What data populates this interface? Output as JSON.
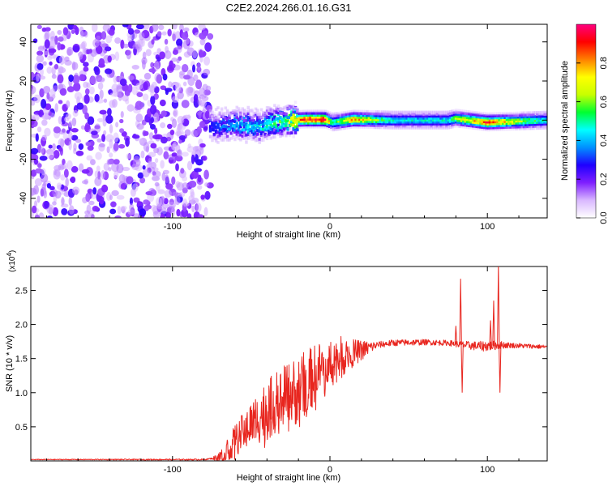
{
  "title": "C2E2.2024.266.01.16.G31",
  "chart_data": [
    {
      "type": "heatmap",
      "xlabel": "Height of straight line (km)",
      "ylabel": "Frequency (Hz)",
      "xlim": [
        -190,
        138
      ],
      "ylim": [
        -50,
        49
      ],
      "xticks": [
        -100,
        0,
        100
      ],
      "yticks": [
        -40,
        -20,
        0,
        20,
        40
      ],
      "colorbar": {
        "label": "Normalized spectral amplitude",
        "range": [
          0,
          1
        ],
        "ticks": [
          "0.0",
          "0.2",
          "0.4",
          "0.6",
          "0.8"
        ],
        "colors": [
          "#ffffff",
          "#d9b8ff",
          "#7f1fff",
          "#1f00ff",
          "#0090ff",
          "#00ffff",
          "#00ff30",
          "#c8ff00",
          "#ffff00",
          "#ff8000",
          "#ff0000",
          "#ff007f"
        ]
      },
      "noise_region_x": [
        -190,
        -76
      ],
      "signal_band": [
        {
          "x": -76,
          "freq_center": -3,
          "amplitude": 0.3
        },
        {
          "x": -60,
          "freq_center": -2,
          "amplitude": 0.4
        },
        {
          "x": -45,
          "freq_center": -3,
          "amplitude": 0.45
        },
        {
          "x": -30,
          "freq_center": 0,
          "amplitude": 0.55
        },
        {
          "x": -15,
          "freq_center": 0.5,
          "amplitude": 0.9
        },
        {
          "x": -3,
          "freq_center": 0.5,
          "amplitude": 0.92
        },
        {
          "x": 2,
          "freq_center": -1,
          "amplitude": 0.5
        },
        {
          "x": 15,
          "freq_center": 0.5,
          "amplitude": 0.8
        },
        {
          "x": 40,
          "freq_center": 0,
          "amplitude": 0.45
        },
        {
          "x": 75,
          "freq_center": 0,
          "amplitude": 0.45
        },
        {
          "x": 80,
          "freq_center": 1,
          "amplitude": 0.6
        },
        {
          "x": 100,
          "freq_center": -1,
          "amplitude": 0.85
        },
        {
          "x": 138,
          "freq_center": 0,
          "amplitude": 0.45
        }
      ]
    },
    {
      "type": "line",
      "xlabel": "Height of straight line (km)",
      "ylabel": "SNR (10 * v/v)",
      "multiplier": "(x10",
      "multiplier_exp": "4",
      "multiplier_close": ")",
      "xlim": [
        -190,
        138
      ],
      "ylim": [
        0,
        2.85
      ],
      "xticks": [
        -100,
        0,
        100
      ],
      "yticks": [
        "0.5",
        "1.0",
        "1.5",
        "2.0",
        "2.5"
      ],
      "color": "#e8261f",
      "envelope": [
        [
          -190,
          0.02
        ],
        [
          -80,
          0.02
        ],
        [
          -70,
          0.05
        ],
        [
          -60,
          0.3
        ],
        [
          -50,
          0.55
        ],
        [
          -40,
          0.75
        ],
        [
          -30,
          0.9
        ],
        [
          -20,
          1.05
        ],
        [
          -10,
          1.25
        ],
        [
          0,
          1.45
        ],
        [
          10,
          1.55
        ],
        [
          20,
          1.62
        ],
        [
          30,
          1.7
        ],
        [
          40,
          1.73
        ],
        [
          60,
          1.74
        ],
        [
          75,
          1.73
        ],
        [
          85,
          1.7
        ],
        [
          95,
          1.68
        ],
        [
          110,
          1.7
        ],
        [
          138,
          1.67
        ]
      ],
      "noise_amplitude": [
        [
          -190,
          0.005
        ],
        [
          -75,
          0.01
        ],
        [
          -65,
          0.18
        ],
        [
          -40,
          0.45
        ],
        [
          -20,
          0.5
        ],
        [
          0,
          0.4
        ],
        [
          15,
          0.2
        ],
        [
          30,
          0.05
        ],
        [
          75,
          0.04
        ],
        [
          100,
          0.08
        ],
        [
          115,
          0.04
        ],
        [
          138,
          0.03
        ]
      ],
      "spikes": [
        {
          "x": 80,
          "value": 1.98
        },
        {
          "x": 83,
          "value": 2.67
        },
        {
          "x": 84,
          "value": 1.0
        },
        {
          "x": 102,
          "value": 2.06
        },
        {
          "x": 104,
          "value": 2.35
        },
        {
          "x": 107,
          "value": 2.88
        },
        {
          "x": 108,
          "value": 1.0
        }
      ]
    }
  ]
}
